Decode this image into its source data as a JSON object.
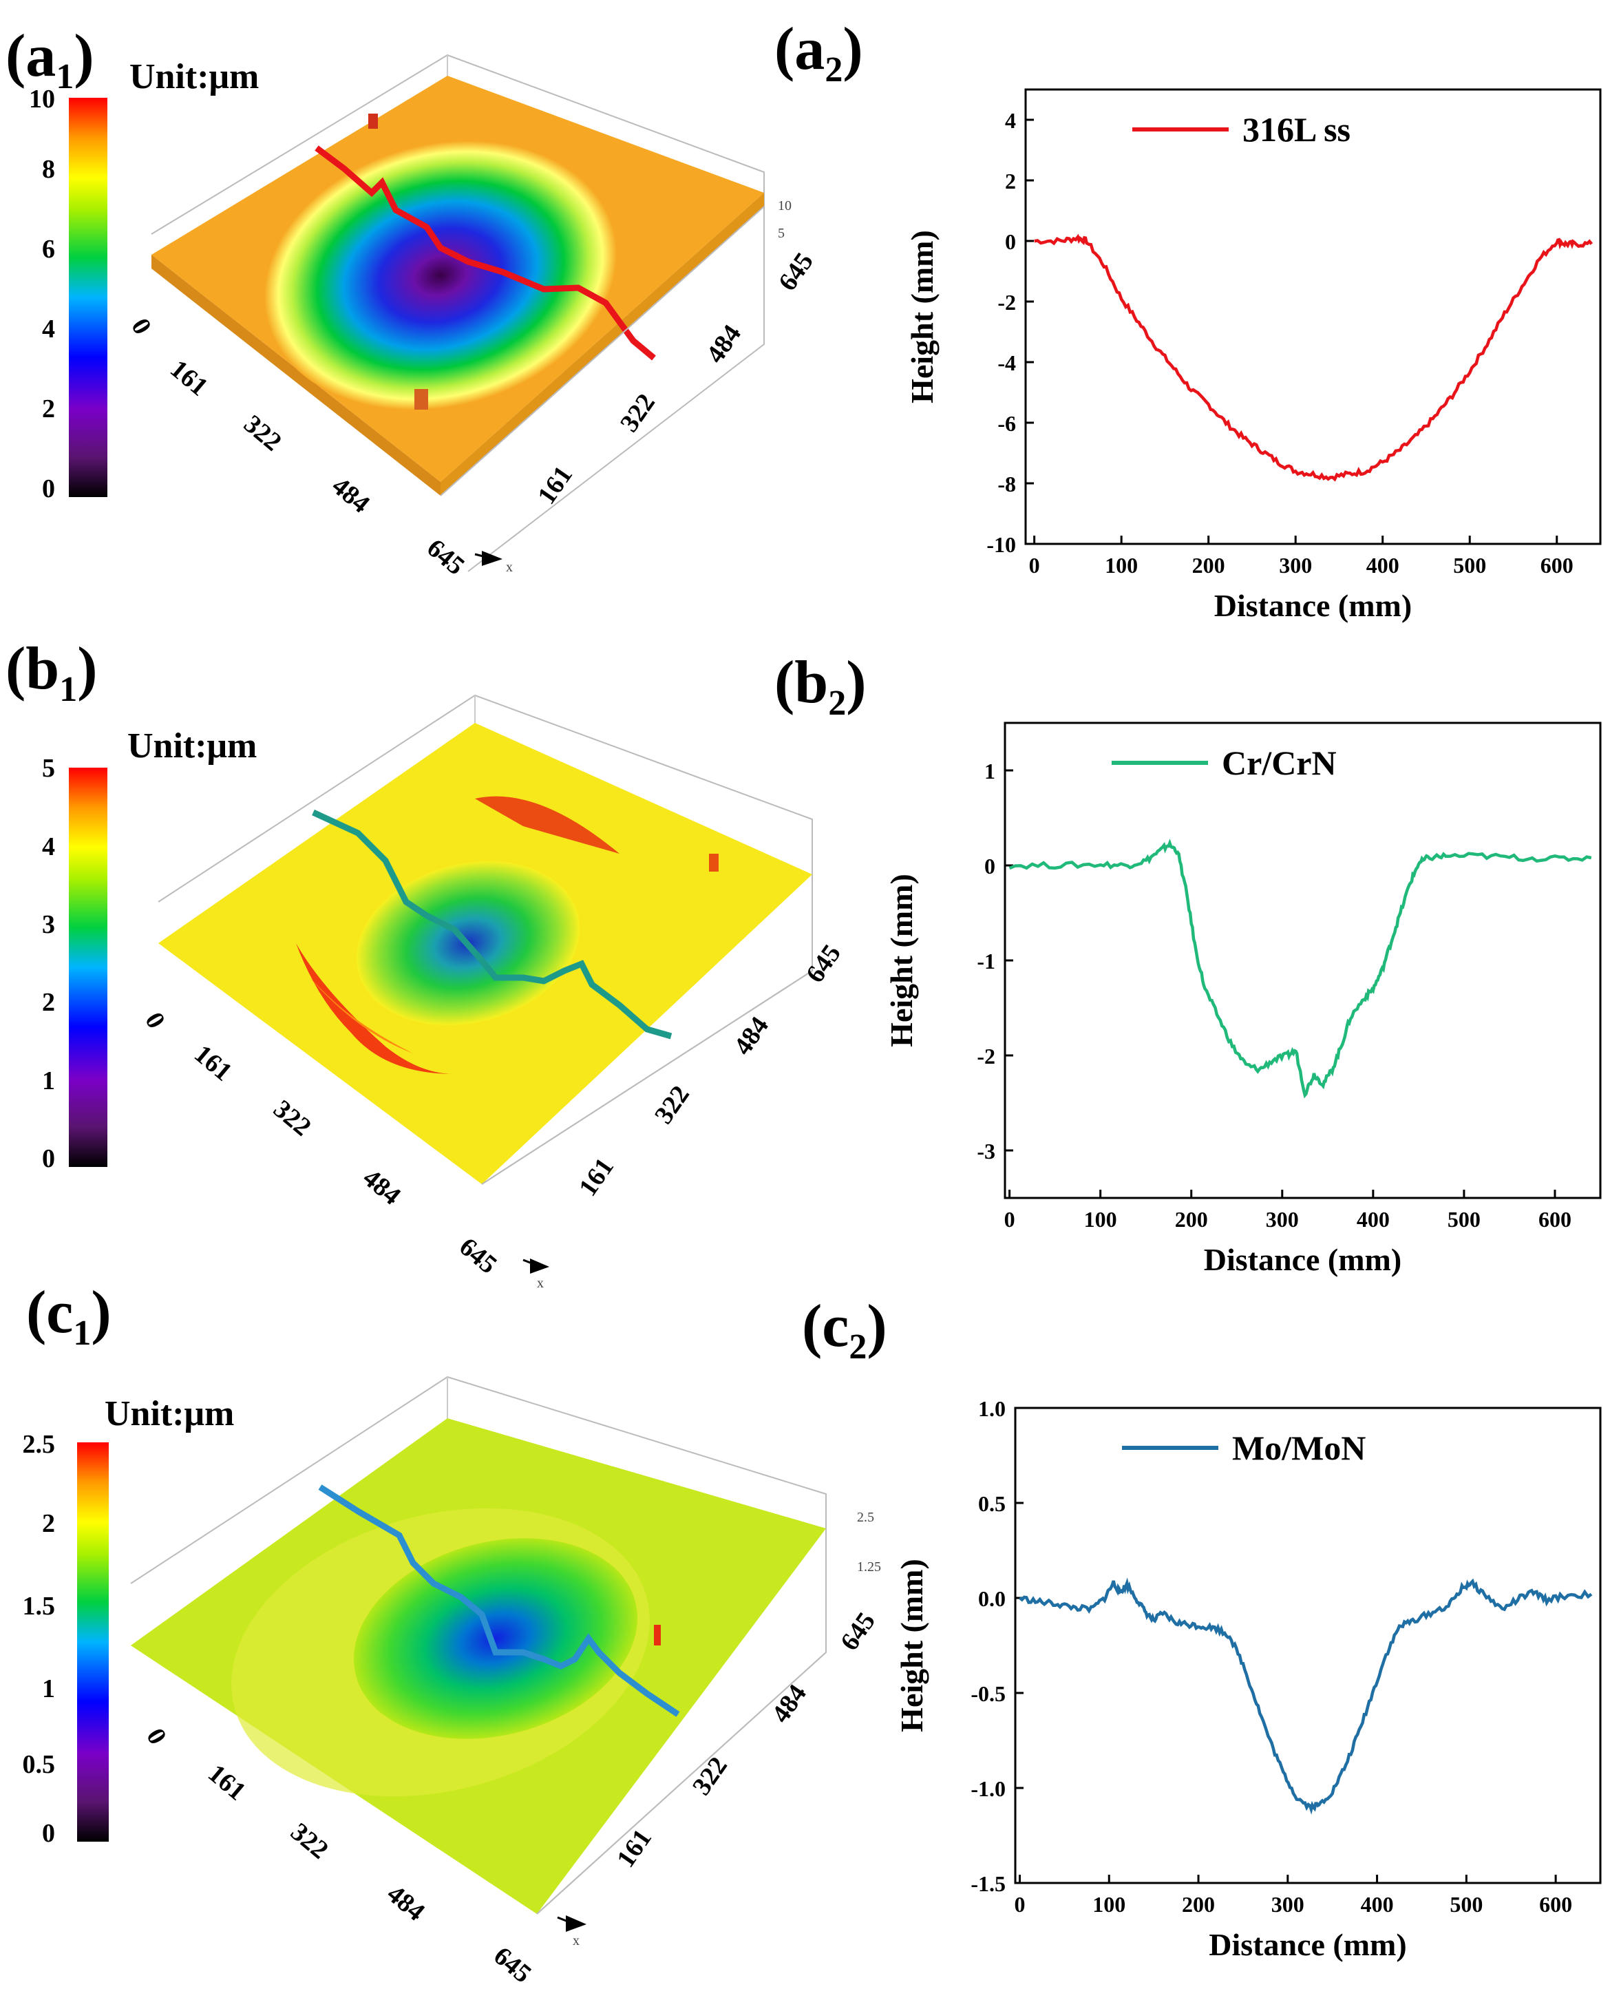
{
  "panels": {
    "a1": {
      "label": "(a",
      "sub": "1",
      "close": ")",
      "unit": "Unit:μm",
      "colorbar_ticks": [
        "0",
        "2",
        "4",
        "6",
        "8",
        "10"
      ],
      "z_tick": "0",
      "z_small": [
        "10",
        "5"
      ],
      "x_ticks": [
        "161",
        "322",
        "484",
        "645"
      ],
      "y_ticks": [
        "161",
        "322",
        "484",
        "645"
      ],
      "x_axis_letter": "x"
    },
    "a2": {
      "label": "(a",
      "sub": "2",
      "close": ")"
    },
    "b1": {
      "label": "(b",
      "sub": "1",
      "close": ")",
      "unit": "Unit:μm",
      "colorbar_ticks": [
        "0",
        "1",
        "2",
        "3",
        "4",
        "5"
      ],
      "z_tick": "0",
      "x_ticks": [
        "161",
        "322",
        "484",
        "645"
      ],
      "y_ticks": [
        "161",
        "322",
        "484",
        "645"
      ],
      "x_axis_letter": "x"
    },
    "b2": {
      "label": "(b",
      "sub": "2",
      "close": ")"
    },
    "c1": {
      "label": "(c",
      "sub": "1",
      "close": ")",
      "unit": "Unit:μm",
      "colorbar_ticks": [
        "0",
        "0.5",
        "1",
        "1.5",
        "2",
        "2.5"
      ],
      "z_tick": "0",
      "z_small": [
        "2.5",
        "1.25"
      ],
      "x_ticks": [
        "161",
        "322",
        "484",
        "645"
      ],
      "y_ticks": [
        "161",
        "322",
        "484",
        "645"
      ],
      "x_axis_letter": "x"
    },
    "c2": {
      "label": "(c",
      "sub": "2",
      "close": ")"
    }
  },
  "chart_data": [
    {
      "type": "line",
      "id": "a2",
      "series": [
        {
          "name": "316L ss",
          "color": "#e8141a",
          "x": [
            0,
            30,
            50,
            60,
            80,
            100,
            120,
            140,
            160,
            180,
            200,
            220,
            240,
            260,
            280,
            300,
            320,
            340,
            360,
            380,
            400,
            420,
            440,
            460,
            480,
            500,
            520,
            540,
            560,
            580,
            600,
            610,
            620,
            640
          ],
          "y": [
            0,
            0,
            0.1,
            0,
            -0.8,
            -1.9,
            -2.7,
            -3.5,
            -4.2,
            -4.9,
            -5.4,
            -6.0,
            -6.5,
            -6.9,
            -7.3,
            -7.6,
            -7.7,
            -7.8,
            -7.7,
            -7.6,
            -7.3,
            -6.9,
            -6.4,
            -5.8,
            -5.1,
            -4.3,
            -3.4,
            -2.4,
            -1.5,
            -0.6,
            0,
            -0.1,
            -0.1,
            -0.1
          ]
        }
      ],
      "xlabel": "Distance (mm)",
      "ylabel": "Height (mm)",
      "xlim": [
        -10,
        650
      ],
      "ylim": [
        -10,
        5
      ],
      "xticks": [
        0,
        100,
        200,
        300,
        400,
        500,
        600
      ],
      "yticks": [
        -10,
        -8,
        -6,
        -4,
        -2,
        0,
        2,
        4
      ],
      "xtick_labels": [
        "0",
        "100",
        "200",
        "300",
        "400",
        "500",
        "600"
      ],
      "ytick_labels": [
        "-10",
        "-8",
        "-6",
        "-4",
        "-2",
        "0",
        "2",
        "4"
      ],
      "legend": "top-left",
      "grid": false
    },
    {
      "type": "line",
      "id": "b2",
      "series": [
        {
          "name": "Cr/CrN",
          "color": "#20b97a",
          "x": [
            0,
            50,
            100,
            130,
            150,
            165,
            175,
            185,
            195,
            205,
            215,
            230,
            245,
            260,
            275,
            290,
            305,
            315,
            325,
            335,
            345,
            355,
            365,
            375,
            390,
            400,
            410,
            420,
            430,
            440,
            450,
            460,
            480,
            520,
            560,
            600,
            640
          ],
          "y": [
            0,
            0,
            0.01,
            0,
            0.05,
            0.15,
            0.22,
            0.15,
            -0.3,
            -0.9,
            -1.3,
            -1.6,
            -1.9,
            -2.1,
            -2.15,
            -2.05,
            -2.0,
            -1.95,
            -2.4,
            -2.2,
            -2.3,
            -2.15,
            -1.9,
            -1.6,
            -1.4,
            -1.3,
            -1.1,
            -0.8,
            -0.5,
            -0.2,
            0.02,
            0.08,
            0.1,
            0.1,
            0.08,
            0.07,
            0.08
          ]
        }
      ],
      "xlabel": "Distance (mm)",
      "ylabel": "Height (mm)",
      "xlim": [
        -5,
        650
      ],
      "ylim": [
        -3.5,
        1.5
      ],
      "xticks": [
        0,
        100,
        200,
        300,
        400,
        500,
        600
      ],
      "yticks": [
        -3,
        -2,
        -1,
        0,
        1
      ],
      "xtick_labels": [
        "0",
        "100",
        "200",
        "300",
        "400",
        "500",
        "600"
      ],
      "ytick_labels": [
        "-3",
        "-2",
        "-1",
        "0",
        "1"
      ],
      "legend": "top-left",
      "grid": false
    },
    {
      "type": "line",
      "id": "c2",
      "series": [
        {
          "name": "Mo/MoN",
          "color": "#1f6fa5",
          "x": [
            0,
            20,
            40,
            60,
            80,
            95,
            105,
            112,
            120,
            130,
            140,
            150,
            160,
            175,
            190,
            205,
            220,
            235,
            250,
            265,
            280,
            295,
            310,
            325,
            335,
            350,
            365,
            380,
            395,
            410,
            425,
            440,
            460,
            480,
            495,
            505,
            520,
            540,
            560,
            575,
            590,
            610,
            640
          ],
          "y": [
            0,
            -0.02,
            -0.03,
            -0.05,
            -0.06,
            0.0,
            0.08,
            0.03,
            0.07,
            0.0,
            -0.07,
            -0.12,
            -0.08,
            -0.13,
            -0.14,
            -0.15,
            -0.16,
            -0.2,
            -0.35,
            -0.55,
            -0.75,
            -0.92,
            -1.05,
            -1.1,
            -1.09,
            -1.02,
            -0.88,
            -0.7,
            -0.5,
            -0.3,
            -0.15,
            -0.12,
            -0.08,
            -0.04,
            0.05,
            0.08,
            0.02,
            -0.06,
            0.0,
            0.03,
            -0.01,
            0.01,
            0.02
          ]
        }
      ],
      "xlabel": "Distance (mm)",
      "ylabel": "Height (mm)",
      "xlim": [
        -5,
        650
      ],
      "ylim": [
        -1.5,
        1.0
      ],
      "xticks": [
        0,
        100,
        200,
        300,
        400,
        500,
        600
      ],
      "yticks": [
        -1.5,
        -1.0,
        -0.5,
        0.0,
        0.5,
        1.0
      ],
      "xtick_labels": [
        "0",
        "100",
        "200",
        "300",
        "400",
        "500",
        "600"
      ],
      "ytick_labels": [
        "-1.5",
        "-1.0",
        "-0.5",
        "0.0",
        "0.5",
        "1.0"
      ],
      "legend": "top-left",
      "grid": false
    }
  ],
  "colors": {
    "a_line": "#e8141a",
    "b_line": "#1e9a8a",
    "c_line": "#2b8fd0"
  }
}
